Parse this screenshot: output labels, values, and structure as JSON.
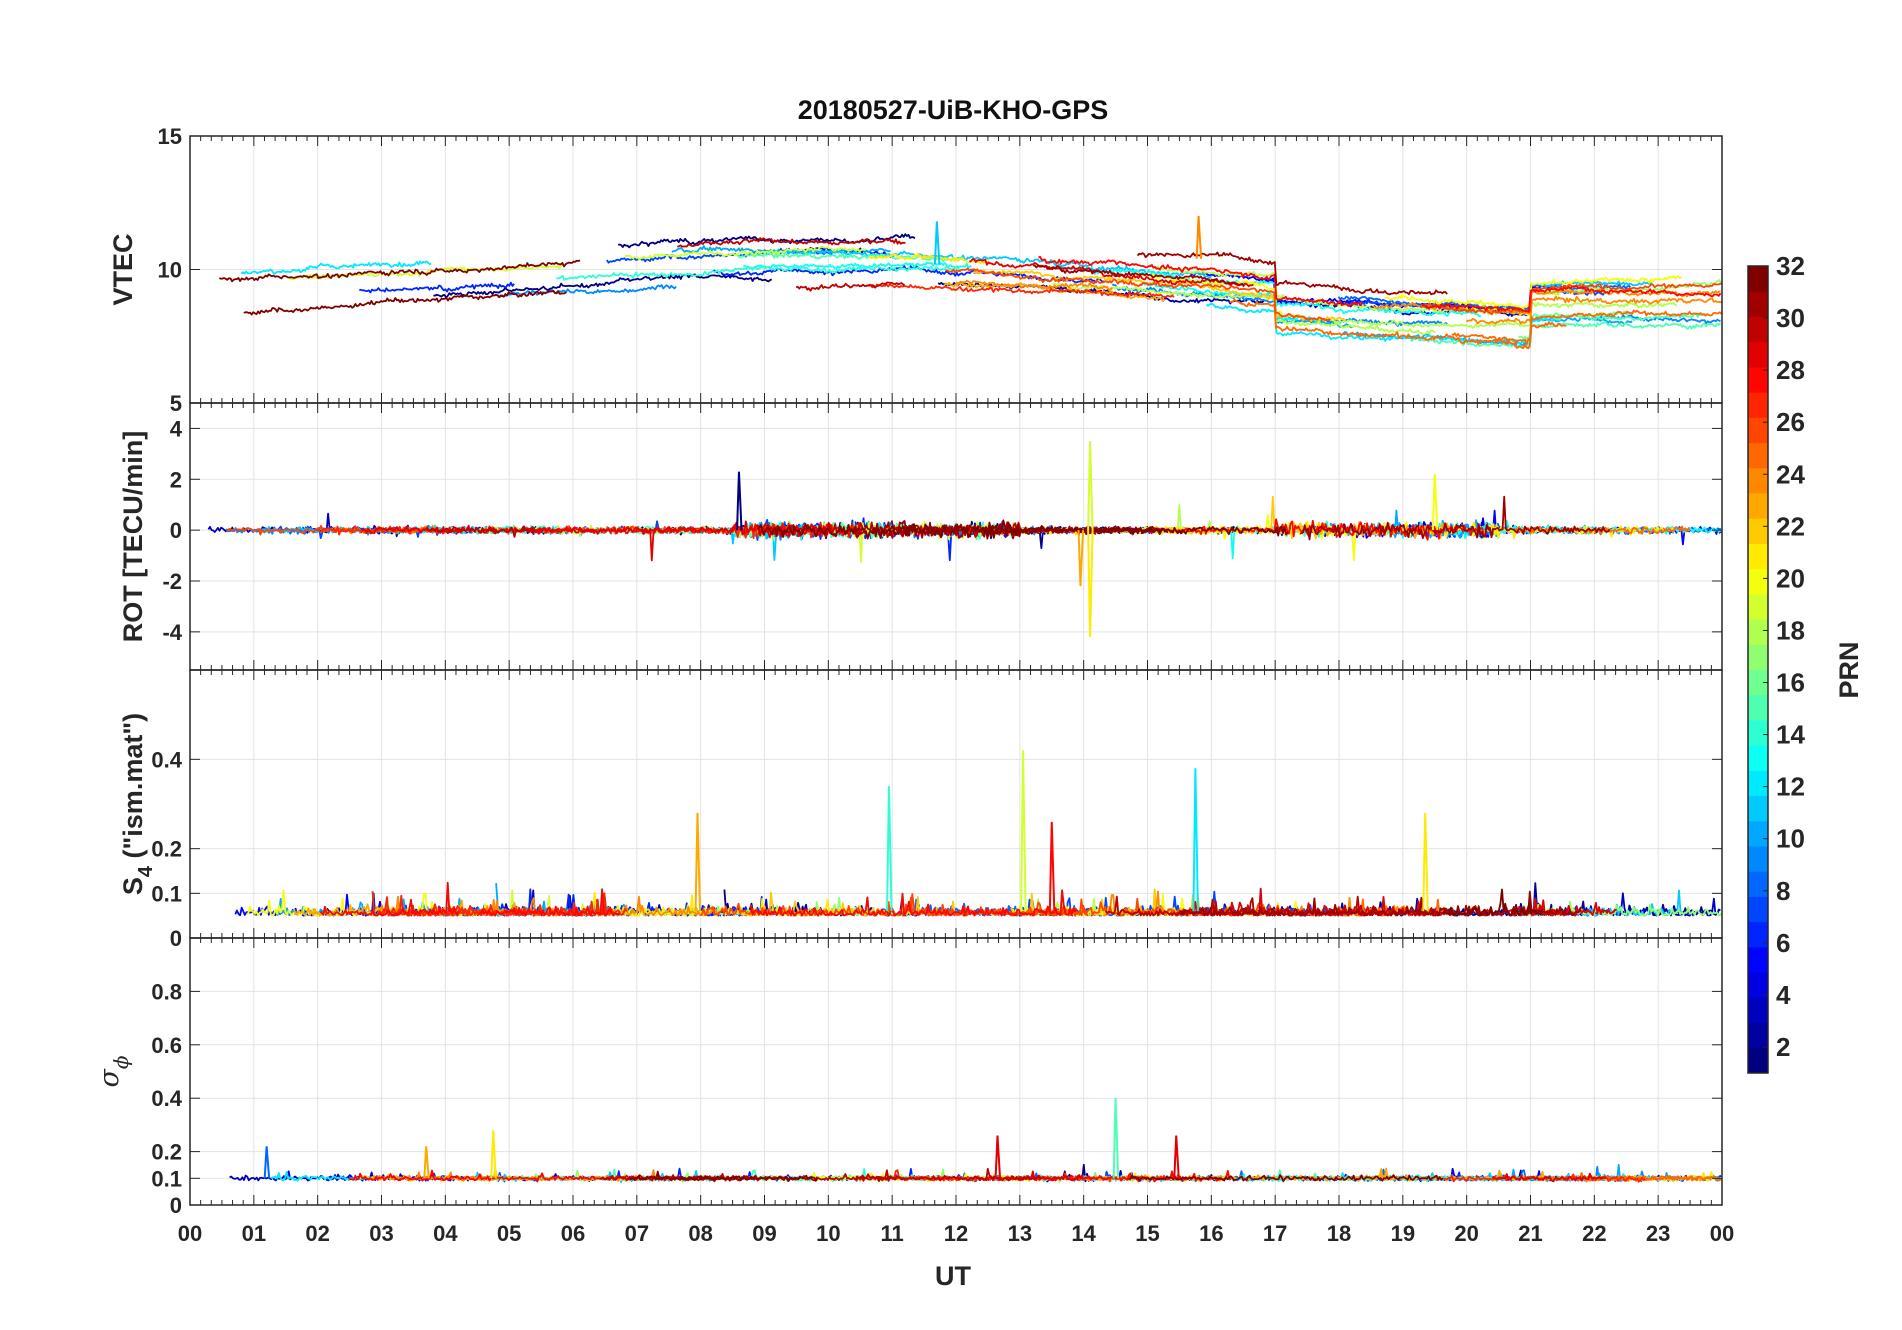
{
  "figure": {
    "title": "20180527-UiB-KHO-GPS",
    "xlabel": "UT"
  },
  "colorbar": {
    "label": "PRN",
    "range": [
      1,
      32
    ],
    "ticks": [
      "2",
      "4",
      "6",
      "8",
      "10",
      "12",
      "14",
      "16",
      "18",
      "20",
      "22",
      "24",
      "26",
      "28",
      "30",
      "32"
    ],
    "colormap": "jet",
    "levels": 32
  },
  "chart_data": [
    {
      "type": "line",
      "panel": "vtec",
      "ylabel": "VTEC",
      "ylim": [
        5,
        15
      ],
      "yticks": [
        "5",
        "10",
        "15"
      ],
      "xlim": [
        0,
        24
      ],
      "xticks": [
        "00",
        "01",
        "02",
        "03",
        "04",
        "05",
        "06",
        "07",
        "08",
        "09",
        "10",
        "11",
        "12",
        "13",
        "14",
        "15",
        "16",
        "17",
        "18",
        "19",
        "20",
        "21",
        "22",
        "23",
        "00"
      ],
      "grid": true,
      "color_by": "PRN",
      "approx_level": 9.0,
      "peak_events": [
        {
          "ut": 11.7,
          "value": 11.8
        },
        {
          "ut": 15.8,
          "value": 12.0
        }
      ]
    },
    {
      "type": "line",
      "panel": "rot",
      "ylabel": "ROT [TECU/min]",
      "ylim": [
        -5.5,
        5
      ],
      "yticks": [
        "-4",
        "-2",
        "0",
        "2",
        "4"
      ],
      "xlim": [
        0,
        24
      ],
      "grid": true,
      "color_by": "PRN",
      "peak_events": [
        {
          "ut": 14.1,
          "value": 3.5
        },
        {
          "ut": 14.1,
          "value": -4.2
        },
        {
          "ut": 13.95,
          "value": -2.2
        },
        {
          "ut": 8.6,
          "value": 2.3
        },
        {
          "ut": 19.5,
          "value": 2.2
        }
      ]
    },
    {
      "type": "line",
      "panel": "s4",
      "ylabel_main": "S",
      "ylabel_sub": "4",
      "ylabel_rest": " (\"ism.mat\")",
      "ylim": [
        0,
        0.6
      ],
      "yticks": [
        "0",
        "0.1",
        "0.2",
        "0.4"
      ],
      "xlim": [
        0,
        24
      ],
      "grid": true,
      "color_by": "PRN",
      "peak_events": [
        {
          "ut": 13.05,
          "value": 0.42
        },
        {
          "ut": 15.75,
          "value": 0.38
        },
        {
          "ut": 10.95,
          "value": 0.34
        },
        {
          "ut": 7.95,
          "value": 0.28
        },
        {
          "ut": 19.35,
          "value": 0.28
        },
        {
          "ut": 13.5,
          "value": 0.26
        }
      ]
    },
    {
      "type": "line",
      "panel": "sigma_phi",
      "ylabel_main": "σ",
      "ylabel_sub": "ϕ",
      "ylim": [
        0,
        1
      ],
      "yticks": [
        "0",
        "0.1",
        "0.2",
        "0.4",
        "0.6",
        "0.8"
      ],
      "xlim": [
        0,
        24
      ],
      "grid": true,
      "color_by": "PRN",
      "peak_events": [
        {
          "ut": 14.5,
          "value": 0.4
        },
        {
          "ut": 4.75,
          "value": 0.28
        },
        {
          "ut": 15.45,
          "value": 0.26
        },
        {
          "ut": 12.65,
          "value": 0.26
        },
        {
          "ut": 3.7,
          "value": 0.22
        },
        {
          "ut": 1.2,
          "value": 0.22
        }
      ]
    }
  ]
}
